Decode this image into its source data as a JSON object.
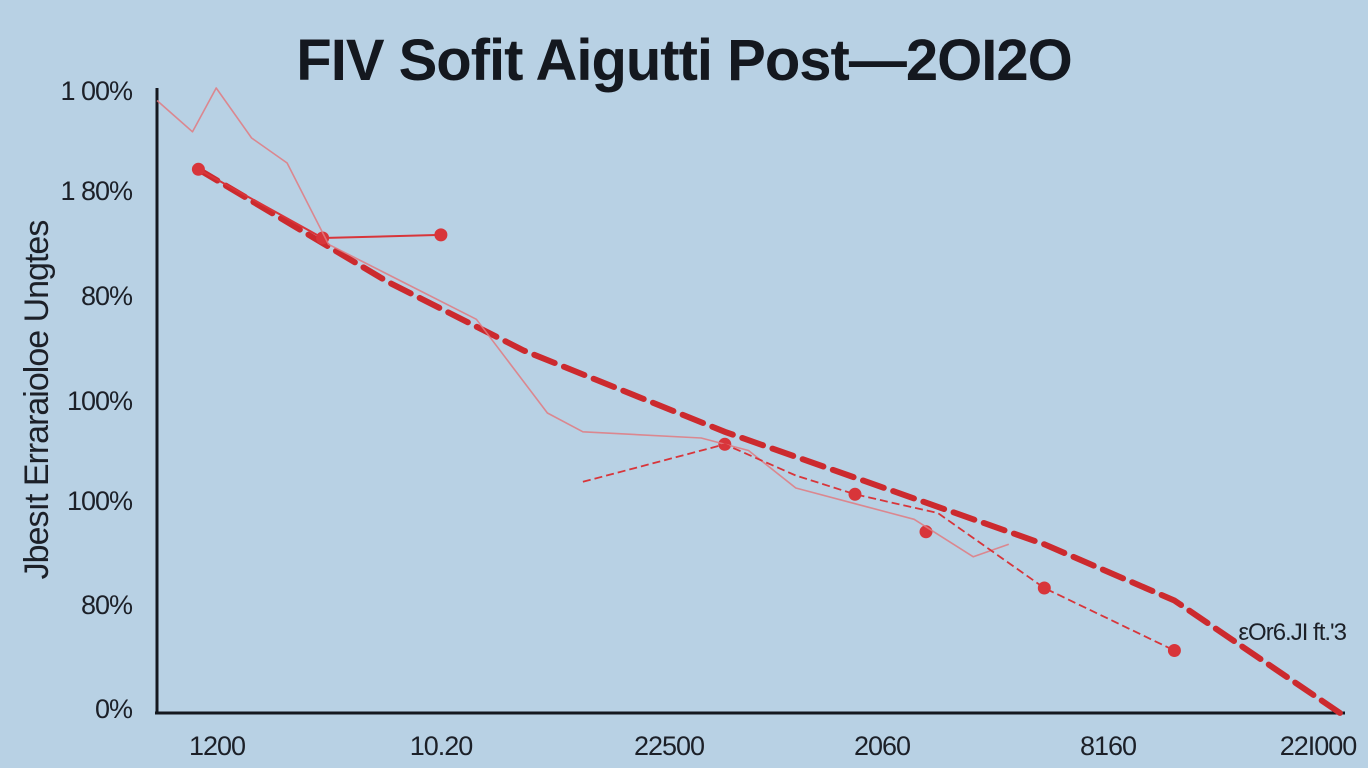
{
  "colors": {
    "background": "#b8d1e4",
    "axis": "#14181f",
    "trend": "#cc2a2e",
    "series": "#d8353a",
    "noise": "#e07a80",
    "text": "#1c2028"
  },
  "chart_data": {
    "type": "line",
    "title": "FIV  Sofit  Aigutti Post—2OI2O",
    "ylabel": "Jbesıt  Erraraioloe  Ungtes",
    "annotation": "εOr6.JI ft.'3",
    "grid": false,
    "legend": "none",
    "x_tick_labels": [
      "1200",
      "10.20",
      "22500",
      "2060",
      "8160",
      "22I000"
    ],
    "y_tick_labels": [
      "1 00%",
      "1 80%",
      "80%",
      "100%",
      "100%",
      "80%",
      "0%"
    ],
    "x_range": [
      0,
      10
    ],
    "y_range": [
      0,
      100
    ],
    "series": [
      {
        "style": "trend-dashed",
        "points": [
          [
            0.35,
            87
          ],
          [
            1.95,
            69
          ],
          [
            3.1,
            58
          ],
          [
            4.8,
            45
          ],
          [
            6.3,
            35
          ],
          [
            7.5,
            27
          ],
          [
            8.6,
            18
          ],
          [
            10,
            0
          ]
        ]
      },
      {
        "style": "main-markers",
        "points": [
          [
            0.35,
            87
          ],
          [
            1.4,
            76
          ],
          [
            2.4,
            76.5
          ],
          [
            4.8,
            43
          ],
          [
            5.9,
            35
          ],
          [
            6.5,
            29
          ],
          [
            7.5,
            20
          ],
          [
            8.6,
            10
          ]
        ],
        "segments": [
          [
            0,
            1,
            2
          ],
          [
            3
          ],
          [
            4
          ],
          [
            5
          ],
          [
            6
          ],
          [
            7
          ]
        ]
      },
      {
        "style": "noise",
        "points": [
          [
            0,
            98
          ],
          [
            0.3,
            93
          ],
          [
            0.5,
            100
          ],
          [
            0.8,
            92
          ],
          [
            1.1,
            88
          ],
          [
            1.45,
            75
          ],
          [
            2.7,
            63
          ],
          [
            3.3,
            48
          ],
          [
            3.6,
            45
          ],
          [
            4.6,
            44
          ],
          [
            5.0,
            42
          ],
          [
            5.4,
            36
          ],
          [
            6.0,
            33
          ],
          [
            6.4,
            31
          ],
          [
            6.9,
            25
          ],
          [
            7.2,
            27
          ]
        ]
      },
      {
        "style": "connector",
        "points": [
          [
            3.6,
            37
          ],
          [
            4.8,
            43
          ],
          [
            5.4,
            38
          ],
          [
            5.9,
            35
          ],
          [
            6.6,
            32
          ],
          [
            7.5,
            20
          ],
          [
            8.6,
            10
          ]
        ]
      }
    ]
  }
}
